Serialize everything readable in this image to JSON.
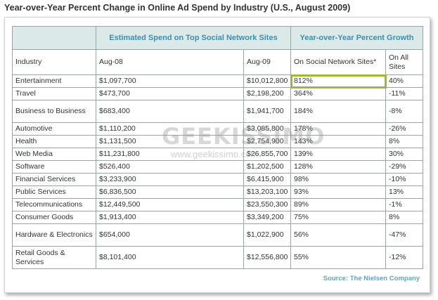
{
  "title": "Year-over-Year Percent Change in Online Ad Spend by Industry (U.S., August 2009)",
  "group_headers": {
    "spend": "Estimated Spend on Top Social Network Sites",
    "growth": "Year-over-Year Percent Growth"
  },
  "columns": {
    "industry": "Industry",
    "aug08": "Aug-08",
    "aug09": "Aug-09",
    "social": "On Social Network Sites*",
    "all": "On All Sites"
  },
  "rows": [
    {
      "industry": "Entertainment",
      "aug08": "$1,097,700",
      "aug09": "$10,012,800",
      "social": "812%",
      "all": "40%"
    },
    {
      "industry": "Travel",
      "aug08": "$473,700",
      "aug09": "$2,198,200",
      "social": "364%",
      "all": "-11%"
    },
    {
      "industry": "Business to Business",
      "aug08": "$683,400",
      "aug09": "$1,941,700",
      "social": "184%",
      "all": "-8%"
    },
    {
      "industry": "Automotive",
      "aug08": "$1,110,200",
      "aug09": "$3,085,800",
      "social": "178%",
      "all": "-26%"
    },
    {
      "industry": "Health",
      "aug08": "$1,131,500",
      "aug09": "$2,754,900",
      "social": "143%",
      "all": "8%"
    },
    {
      "industry": "Web Media",
      "aug08": "$11,231,800",
      "aug09": "$26,855,700",
      "social": "139%",
      "all": "30%"
    },
    {
      "industry": "Software",
      "aug08": "$526,400",
      "aug09": "$1,202,500",
      "social": "128%",
      "all": "-29%"
    },
    {
      "industry": "Financial Services",
      "aug08": "$3,233,900",
      "aug09": "$6,415,900",
      "social": "98%",
      "all": "-10%"
    },
    {
      "industry": "Public Services",
      "aug08": "$6,836,500",
      "aug09": "$13,203,100",
      "social": "93%",
      "all": "13%"
    },
    {
      "industry": "Telecommunications",
      "aug08": "$12,449,500",
      "aug09": "$23,550,300",
      "social": "89%",
      "all": "-1%"
    },
    {
      "industry": "Consumer Goods",
      "aug08": "$1,913,400",
      "aug09": "$3,349,200",
      "social": "75%",
      "all": "8%"
    },
    {
      "industry": "Hardware & Electronics",
      "aug08": "$654,000",
      "aug09": "$1,022,900",
      "social": "56%",
      "all": "-47%"
    },
    {
      "industry": "Retail Goods & Services",
      "aug08": "$8,101,400",
      "aug09": "$12,556,800",
      "social": "55%",
      "all": "-12%"
    }
  ],
  "source": "Source: The Nielsen Company",
  "watermark": {
    "logo": "GEEKISSIMO",
    "url": "www.geekissimo.com"
  },
  "colors": {
    "header_bg": "#dce9e9",
    "header_text": "#3b8fb0",
    "highlight": "#9ab83a"
  }
}
